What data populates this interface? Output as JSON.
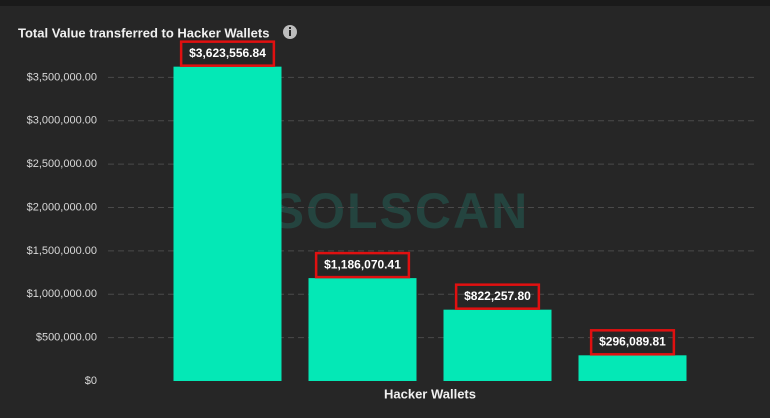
{
  "chart_data": {
    "type": "bar",
    "title": "Total Value transferred to Hacker Wallets",
    "watermark": "SOLSCAN",
    "x_label": "Hacker Wallets",
    "categories": [
      null,
      null,
      null,
      null
    ],
    "values": [
      3623556.84,
      1186070.41,
      822257.8,
      296089.81
    ],
    "value_labels": [
      "$3,623,556.84",
      "$1,186,070.41",
      "$822,257.80",
      "$296,089.81"
    ],
    "color": "#04e8b6",
    "ylim": [
      0,
      4000000
    ],
    "yticks": [
      {
        "value": 0,
        "label": "$0"
      },
      {
        "value": 500000,
        "label": "$500,000.00"
      },
      {
        "value": 1000000,
        "label": "$1,000,000.00"
      },
      {
        "value": 1500000,
        "label": "$1,500,000.00"
      },
      {
        "value": 2000000,
        "label": "$2,000,000.00"
      },
      {
        "value": 2500000,
        "label": "$2,500,000.00"
      },
      {
        "value": 3000000,
        "label": "$3,000,000.00"
      },
      {
        "value": 3500000,
        "label": "$3,500,000.00"
      }
    ],
    "grid": true
  }
}
